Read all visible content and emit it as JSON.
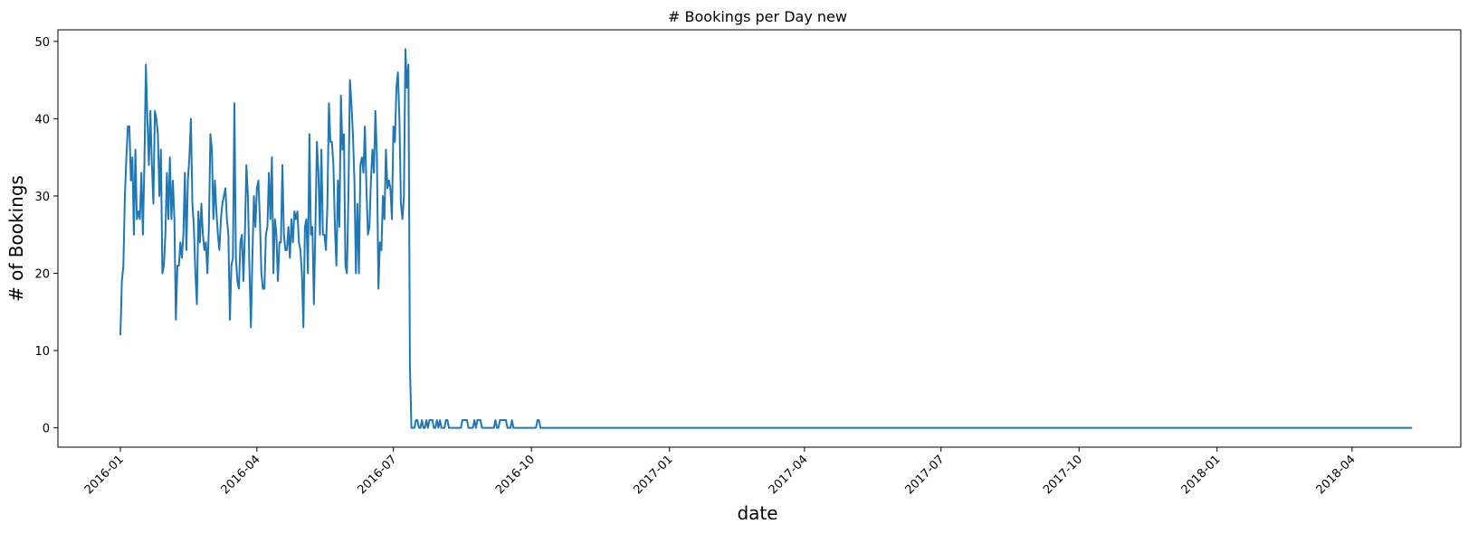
{
  "chart_data": {
    "type": "line",
    "title": "# Bookings per Day new",
    "xlabel": "date",
    "ylabel": "# of Bookings",
    "x_start": "2016-01-01",
    "x_end": "2018-04-30",
    "ylim": [
      -2.5,
      51.5
    ],
    "yticks": [
      0,
      10,
      20,
      30,
      40,
      50
    ],
    "xticks": [
      "2016-01",
      "2016-04",
      "2016-07",
      "2016-10",
      "2017-01",
      "2017-04",
      "2017-07",
      "2017-10",
      "2018-01",
      "2018-04"
    ],
    "grid": false,
    "color": "#1f77b4",
    "series": [
      {
        "values_2016_jan_to_jun": [
          12,
          19,
          21,
          30,
          35,
          39,
          39,
          32,
          35,
          25,
          36,
          27,
          28,
          27,
          33,
          25,
          34,
          47,
          40,
          34,
          41,
          34,
          29,
          41,
          40,
          38,
          30,
          36,
          20,
          21,
          25,
          33,
          27,
          35,
          27,
          32,
          27,
          14,
          21,
          21,
          24,
          22,
          25,
          33,
          23,
          32,
          35,
          40,
          29,
          26,
          20,
          16,
          28,
          24,
          29,
          25,
          23,
          24,
          20,
          26,
          38,
          36,
          27,
          32,
          28,
          25,
          23,
          27,
          29,
          30,
          31,
          27,
          25,
          14,
          21,
          22,
          42,
          22,
          19,
          18,
          24,
          25,
          19,
          25,
          34,
          30,
          21,
          13,
          22,
          30,
          26,
          31,
          32,
          27,
          20,
          18,
          18,
          25,
          26,
          33,
          27,
          35,
          20,
          27,
          25,
          19,
          24,
          24,
          34,
          25,
          23,
          23,
          26,
          22,
          27,
          24,
          28,
          27,
          28,
          24,
          23,
          20,
          13,
          26,
          27,
          20,
          38,
          25,
          26,
          16,
          26,
          37,
          33,
          25,
          36,
          25,
          25,
          23,
          29,
          42,
          37,
          37,
          34,
          26,
          21,
          32,
          26,
          43,
          36,
          38,
          21,
          20,
          30,
          45,
          42,
          38,
          32,
          20,
          29,
          20,
          34,
          35,
          33,
          39,
          31,
          25,
          26,
          32,
          36,
          33,
          41,
          35,
          18,
          24,
          23,
          30,
          27,
          36,
          31,
          32,
          31,
          27,
          39,
          37,
          44,
          46,
          40,
          29,
          27,
          30,
          49,
          44,
          47
        ]
      }
    ],
    "late_2016_spikes_value_1_days_from_jul1": [
      4,
      5,
      8,
      11,
      13,
      14,
      15,
      18,
      20,
      24,
      25,
      35,
      36,
      37,
      38,
      43,
      45,
      46,
      47,
      57,
      60,
      61,
      62,
      63,
      64,
      68,
      85,
      86
    ]
  }
}
